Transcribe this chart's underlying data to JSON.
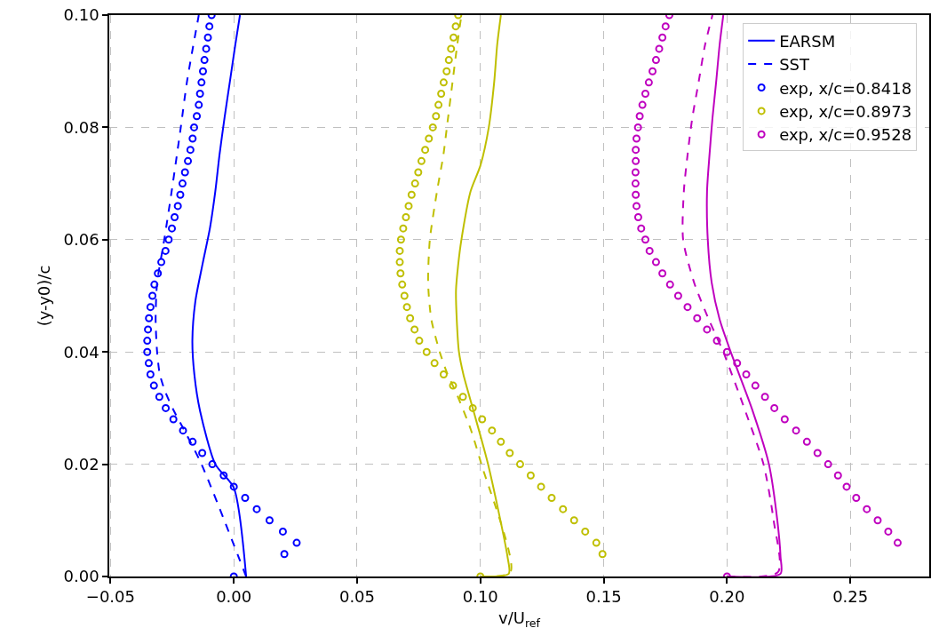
{
  "chart_data": {
    "type": "line",
    "xlabel": "v/U$_{ref}$",
    "ylabel": "(y-y0)/c",
    "xlim": [
      -0.0505,
      0.282
    ],
    "ylim": [
      0,
      0.1
    ],
    "xticks": [
      {
        "value": -0.05,
        "label": "−0.05"
      },
      {
        "value": 0,
        "label": "0.00"
      },
      0.05,
      {
        "value": 0.1,
        "label": "0.10"
      },
      0.15,
      {
        "value": 0.2,
        "label": "0.20"
      },
      0.25
    ],
    "yticks": [
      {
        "value": 0,
        "label": "0.00"
      },
      0.02,
      0.04,
      0.06,
      0.08,
      {
        "value": 0.1,
        "label": "0.10"
      }
    ],
    "grid": true,
    "legend": "top right",
    "series": [
      {
        "name": "EARSM",
        "type": "line",
        "color": "#0000ff",
        "line_style": "solid",
        "x": [
          0.005,
          0.0,
          -0.0075,
          -0.0137,
          -0.016,
          -0.0168,
          -0.0156,
          -0.0127,
          -0.0097,
          -0.0075,
          -0.0058,
          -0.0038,
          -0.0016,
          0.0006,
          0.0025
        ],
        "values": [
          0,
          0.0158,
          0.02,
          0.0295,
          0.036,
          0.042,
          0.049,
          0.0556,
          0.062,
          0.0686,
          0.0751,
          0.0816,
          0.0881,
          0.0947,
          0.1
        ]
      },
      {
        "name": "SST",
        "type": "line",
        "color": "#0000ff",
        "line_style": "dashed",
        "x": [
          0.005,
          -0.0131,
          -0.0204,
          -0.0243,
          -0.0277,
          -0.03,
          -0.0311,
          -0.0317,
          -0.0311,
          -0.0282,
          -0.0252,
          -0.0215,
          -0.019,
          -0.0142
        ],
        "values": [
          0,
          0.02,
          0.0263,
          0.0295,
          0.0328,
          0.036,
          0.04,
          0.0458,
          0.0523,
          0.06,
          0.0686,
          0.08,
          0.0881,
          0.1
        ]
      },
      {
        "type": "line",
        "color": "#bfbf00",
        "line_style": "solid",
        "x": [
          0.1,
          0.1115,
          0.111,
          0.1031,
          0.0972,
          0.0931,
          0.0913,
          0.0904,
          0.0901,
          0.091,
          0.0923,
          0.096,
          0.1,
          0.1034,
          0.1056,
          0.1068,
          0.1083
        ],
        "values": [
          0,
          0.0005,
          0.0035,
          0.02,
          0.0295,
          0.036,
          0.04,
          0.0458,
          0.051,
          0.0556,
          0.06,
          0.0686,
          0.0732,
          0.08,
          0.0881,
          0.0947,
          0.1
        ]
      },
      {
        "type": "line",
        "color": "#bfbf00",
        "line_style": "dashed",
        "x": [
          0.1,
          0.1122,
          0.1004,
          0.096,
          0.0901,
          0.0867,
          0.0835,
          0.0801,
          0.0788,
          0.0795,
          0.0824,
          0.085,
          0.0864,
          0.0887,
          0.0906,
          0.0923
        ],
        "values": [
          0,
          0.0008,
          0.02,
          0.0263,
          0.0328,
          0.036,
          0.04,
          0.0458,
          0.0523,
          0.06,
          0.0686,
          0.0751,
          0.08,
          0.0881,
          0.0947,
          0.1
        ]
      },
      {
        "type": "line",
        "color": "#bf00bf",
        "line_style": "solid",
        "x": [
          0.2,
          0.2217,
          0.2217,
          0.2204,
          0.217,
          0.2104,
          0.2015,
          0.197,
          0.1938,
          0.1922,
          0.1919,
          0.1929,
          0.1941,
          0.1956,
          0.197,
          0.1985
        ],
        "values": [
          0,
          0.0005,
          0.0035,
          0.01,
          0.02,
          0.0295,
          0.04,
          0.0458,
          0.0523,
          0.06,
          0.0686,
          0.0751,
          0.0816,
          0.0881,
          0.0947,
          0.1
        ]
      },
      {
        "type": "line",
        "color": "#bf00bf",
        "line_style": "dashed",
        "x": [
          0.2,
          0.2207,
          0.2189,
          0.2148,
          0.2074,
          0.1985,
          0.1926,
          0.1867,
          0.1822,
          0.1825,
          0.184,
          0.1859,
          0.1885,
          0.1911,
          0.1941
        ],
        "values": [
          0,
          0.0008,
          0.01,
          0.02,
          0.0295,
          0.04,
          0.0458,
          0.0523,
          0.06,
          0.0686,
          0.0751,
          0.0816,
          0.0881,
          0.0947,
          0.1
        ]
      },
      {
        "name": "exp, x/c=0.8418",
        "type": "scatter",
        "marker": "circle",
        "color": "#0000ff",
        "x": [
          0,
          0.0205,
          0.0255,
          0.0199,
          0.0145,
          0.0093,
          0.0046,
          0.0,
          -0.0041,
          -0.0087,
          -0.0128,
          -0.0167,
          -0.0206,
          -0.0245,
          -0.0276,
          -0.0302,
          -0.0324,
          -0.0338,
          -0.0345,
          -0.0351,
          -0.0351,
          -0.0348,
          -0.0344,
          -0.0338,
          -0.033,
          -0.0322,
          -0.0308,
          -0.0294,
          -0.0277,
          -0.0264,
          -0.0251,
          -0.024,
          -0.0227,
          -0.0217,
          -0.0208,
          -0.0198,
          -0.0186,
          -0.0176,
          -0.0167,
          -0.0161,
          -0.015,
          -0.0142,
          -0.0137,
          -0.0131,
          -0.0125,
          -0.0119,
          -0.0112,
          -0.0105,
          -0.0099,
          -0.009
        ],
        "values": [
          0,
          0.004,
          0.006,
          0.008,
          0.01,
          0.012,
          0.014,
          0.016,
          0.018,
          0.02,
          0.022,
          0.024,
          0.026,
          0.028,
          0.03,
          0.032,
          0.034,
          0.036,
          0.038,
          0.04,
          0.042,
          0.044,
          0.046,
          0.048,
          0.05,
          0.052,
          0.054,
          0.056,
          0.058,
          0.06,
          0.062,
          0.064,
          0.066,
          0.068,
          0.07,
          0.072,
          0.074,
          0.076,
          0.078,
          0.08,
          0.082,
          0.084,
          0.086,
          0.088,
          0.09,
          0.092,
          0.094,
          0.096,
          0.098,
          0.1
        ]
      },
      {
        "name": "exp, x/c=0.8973",
        "type": "scatter",
        "marker": "circle",
        "color": "#bfbf00",
        "x": [
          0.1,
          0.1495,
          0.147,
          0.1425,
          0.138,
          0.1335,
          0.1289,
          0.1246,
          0.1204,
          0.1161,
          0.1119,
          0.1083,
          0.1047,
          0.1007,
          0.0969,
          0.0929,
          0.0889,
          0.0851,
          0.0814,
          0.0782,
          0.0752,
          0.0733,
          0.0715,
          0.0702,
          0.0692,
          0.0683,
          0.0676,
          0.0673,
          0.0673,
          0.0678,
          0.0687,
          0.0698,
          0.0709,
          0.0721,
          0.0735,
          0.0748,
          0.0761,
          0.0776,
          0.0791,
          0.0807,
          0.082,
          0.083,
          0.0841,
          0.0851,
          0.0863,
          0.0872,
          0.0881,
          0.0891,
          0.09,
          0.091
        ],
        "values": [
          0,
          0.004,
          0.006,
          0.008,
          0.01,
          0.012,
          0.014,
          0.016,
          0.018,
          0.02,
          0.022,
          0.024,
          0.026,
          0.028,
          0.03,
          0.032,
          0.034,
          0.036,
          0.038,
          0.04,
          0.042,
          0.044,
          0.046,
          0.048,
          0.05,
          0.052,
          0.054,
          0.056,
          0.058,
          0.06,
          0.062,
          0.064,
          0.066,
          0.068,
          0.07,
          0.072,
          0.074,
          0.076,
          0.078,
          0.08,
          0.082,
          0.084,
          0.086,
          0.088,
          0.09,
          0.092,
          0.094,
          0.096,
          0.098,
          0.1
        ]
      },
      {
        "name": "exp, x/c=0.9528",
        "type": "scatter",
        "marker": "circle",
        "color": "#bf00bf",
        "x": [
          0.2,
          0.2692,
          0.2654,
          0.2611,
          0.2567,
          0.2524,
          0.2485,
          0.245,
          0.241,
          0.2367,
          0.2324,
          0.228,
          0.2234,
          0.2192,
          0.2154,
          0.2115,
          0.2078,
          0.2041,
          0.2,
          0.1959,
          0.1919,
          0.1879,
          0.184,
          0.1802,
          0.1769,
          0.1738,
          0.1712,
          0.1686,
          0.1669,
          0.1652,
          0.164,
          0.1633,
          0.163,
          0.1629,
          0.1629,
          0.163,
          0.163,
          0.1633,
          0.1639,
          0.1646,
          0.1657,
          0.1669,
          0.1683,
          0.1698,
          0.1712,
          0.1725,
          0.1738,
          0.1751,
          0.1766
        ],
        "values": [
          0,
          0.006,
          0.008,
          0.01,
          0.012,
          0.014,
          0.016,
          0.018,
          0.02,
          0.022,
          0.024,
          0.026,
          0.028,
          0.03,
          0.032,
          0.034,
          0.036,
          0.038,
          0.04,
          0.042,
          0.044,
          0.046,
          0.048,
          0.05,
          0.052,
          0.054,
          0.056,
          0.058,
          0.06,
          0.062,
          0.064,
          0.066,
          0.068,
          0.07,
          0.072,
          0.074,
          0.076,
          0.078,
          0.08,
          0.082,
          0.084,
          0.086,
          0.088,
          0.09,
          0.092,
          0.094,
          0.096,
          0.098,
          0.1
        ]
      }
    ]
  }
}
